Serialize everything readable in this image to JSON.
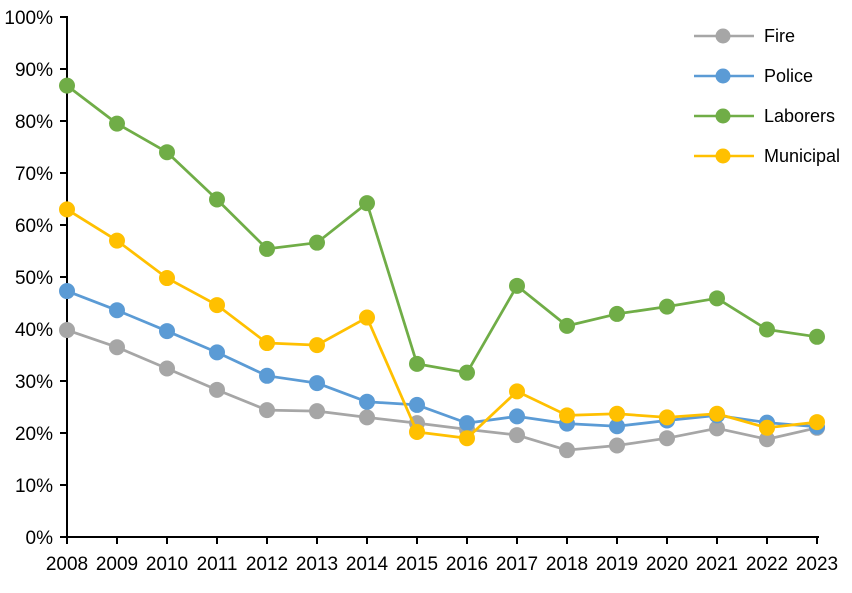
{
  "chart_data": {
    "type": "line",
    "title": "",
    "xlabel": "",
    "ylabel": "",
    "x": [
      2008,
      2009,
      2010,
      2011,
      2012,
      2013,
      2014,
      2015,
      2016,
      2017,
      2018,
      2019,
      2020,
      2021,
      2022,
      2023
    ],
    "xtick_labels": [
      "2008",
      "2009",
      "2010",
      "2011",
      "2012",
      "2013",
      "2014",
      "2015",
      "2016",
      "2017",
      "2018",
      "2019",
      "2020",
      "2021",
      "2022",
      "2023"
    ],
    "ylim": [
      0,
      100
    ],
    "ytick_step": 10,
    "ytick_labels": [
      "0%",
      "10%",
      "20%",
      "30%",
      "40%",
      "50%",
      "60%",
      "70%",
      "80%",
      "90%",
      "100%"
    ],
    "grid": false,
    "legend_position": "top-right",
    "background_color": "#FFFFFF",
    "axis_color": "#000000",
    "series": [
      {
        "name": "Fire",
        "color": "#A6A6A6",
        "values": [
          39.8,
          36.5,
          32.4,
          28.3,
          24.4,
          24.2,
          23.0,
          21.9,
          20.7,
          19.6,
          16.7,
          17.6,
          19.0,
          20.9,
          18.8,
          21.0
        ]
      },
      {
        "name": "Police",
        "color": "#5B9BD5",
        "values": [
          47.3,
          43.6,
          39.6,
          35.5,
          31.0,
          29.6,
          26.0,
          25.4,
          21.9,
          23.2,
          21.8,
          21.3,
          22.4,
          23.4,
          22.0,
          21.2
        ]
      },
      {
        "name": "Laborers",
        "color": "#70AD47",
        "values": [
          86.8,
          79.5,
          74.0,
          64.9,
          55.4,
          56.6,
          64.2,
          33.3,
          31.6,
          48.3,
          40.6,
          42.9,
          44.3,
          45.9,
          39.9,
          38.5
        ]
      },
      {
        "name": "Municipal",
        "color": "#FFC000",
        "values": [
          63.0,
          57.0,
          49.8,
          44.6,
          37.3,
          36.9,
          42.2,
          20.2,
          19.0,
          28.0,
          23.4,
          23.7,
          23.0,
          23.7,
          21.0,
          22.1
        ]
      }
    ]
  }
}
